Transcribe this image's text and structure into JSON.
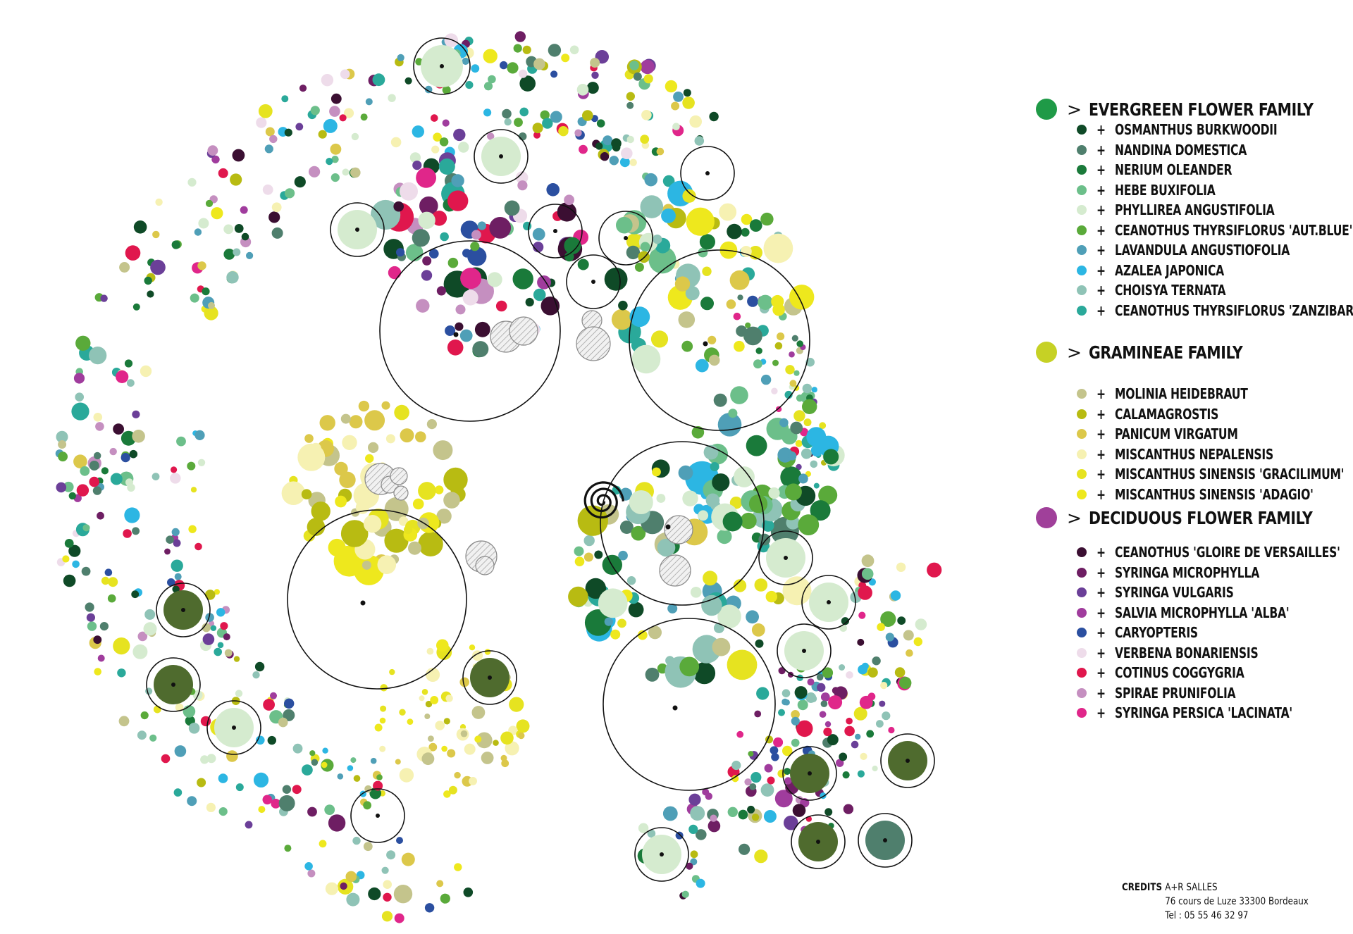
{
  "legend": {
    "families": [
      {
        "prefix": ">",
        "title": "EVERGREEN FLOWER FAMILY",
        "color": "#1f9a47",
        "items": [
          {
            "label": "OSMANTHUS BURKWOODII",
            "color": "#0f4a27"
          },
          {
            "label": "NANDINA DOMESTICA",
            "color": "#4f7f6d"
          },
          {
            "label": "NERIUM OLEANDER",
            "color": "#1a7a3a"
          },
          {
            "label": "HEBE BUXIFOLIA",
            "color": "#6cbf8a"
          },
          {
            "label": "PHYLLIREA ANGUSTIFOLIA",
            "color": "#d5ebcf"
          },
          {
            "label": "CEANOTHUS THYRSIFLORUS 'AUT.BLUE'",
            "color": "#5aaa3a"
          },
          {
            "label": "LAVANDULA ANGUSTIOFOLIA",
            "color": "#4f9fb7"
          },
          {
            "label": "AZALEA JAPONICA",
            "color": "#2cb6e3"
          },
          {
            "label": "CHOISYA TERNATA",
            "color": "#8fc3b6"
          },
          {
            "label": "CEANOTHUS THYRSIFLORUS 'ZANZIBAR'",
            "color": "#2aa99a"
          }
        ]
      },
      {
        "prefix": ">",
        "title": "GRAMINEAE FAMILY",
        "color": "#c6d125",
        "items": [
          {
            "label": "MOLINIA HEIDEBRAUT",
            "color": "#c4c48c"
          },
          {
            "label": "CALAMAGROSTIS",
            "color": "#b8bb12"
          },
          {
            "label": "PANICUM VIRGATUM",
            "color": "#dcc84a"
          },
          {
            "label": "MISCANTHUS NEPALENSIS",
            "color": "#f6f1b2"
          },
          {
            "label": "MISCANTHUS SINENSIS 'GRACILIMUM'",
            "color": "#e6e320"
          },
          {
            "label": "MISCANTHUS SINENSIS 'ADAGIO'",
            "color": "#eee81d"
          }
        ]
      },
      {
        "prefix": ">",
        "title": "DECIDUOUS FLOWER FAMILY",
        "color": "#a0409a",
        "items": [
          {
            "label": "CEANOTHUS 'GLOIRE DE VERSAILLES'",
            "color": "#3b0f32"
          },
          {
            "label": "SYRINGA MICROPHYLLA",
            "color": "#6e1e63"
          },
          {
            "label": "SYRINGA VULGARIS",
            "color": "#6b3f98"
          },
          {
            "label": "SALVIA MICROPHYLLA 'ALBA'",
            "color": "#a03c9d"
          },
          {
            "label": "CARYOPTERIS",
            "color": "#2b4fa0"
          },
          {
            "label": " VERBENA BONARIENSIS",
            "color": "#eedcea"
          },
          {
            "label": "COTINUS COGGYGRIA",
            "color": "#e0174d"
          },
          {
            "label": "SPIRAE PRUNIFOLIA",
            "color": "#c58fc0"
          },
          {
            "label": "SYRINGA PERSICA 'LACINATA'",
            "color": "#e0268a"
          }
        ]
      }
    ]
  },
  "credits": {
    "key": "CREDITS",
    "name": "A+R SALLES",
    "address": "76 cours de Luze 33300 Bordeaux",
    "phone": "Tel : 05 55 46 32 97"
  }
}
